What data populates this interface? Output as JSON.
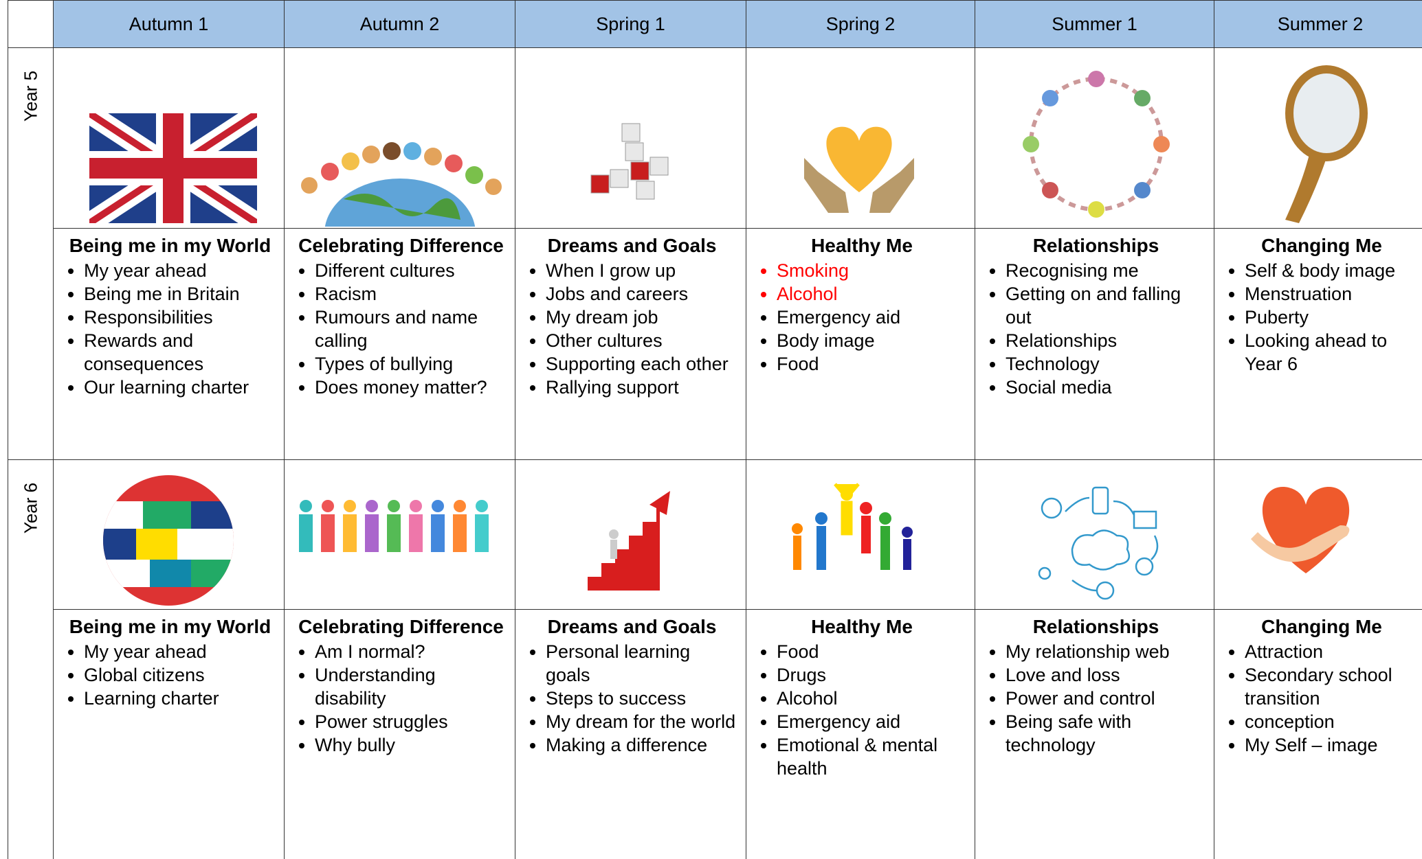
{
  "header": {
    "columns": [
      "Autumn 1",
      "Autumn 2",
      "Spring 1",
      "Spring 2",
      "Summer 1",
      "Summer 2"
    ]
  },
  "rows": [
    {
      "label": "Year 5",
      "cells": [
        {
          "title": "Being me in my World",
          "items": [
            "My year ahead",
            "Being me in Britain",
            "Responsibilities",
            "Rewards and consequences",
            "Our learning charter"
          ]
        },
        {
          "title": "Celebrating Difference",
          "items": [
            "Different cultures",
            "Racism",
            "Rumours and name calling",
            "Types of bullying",
            "Does money matter?"
          ]
        },
        {
          "title": "Dreams and Goals",
          "items": [
            "When I grow up",
            "Jobs and careers",
            "My dream job",
            "Other cultures",
            "Supporting each other",
            "Rallying support"
          ]
        },
        {
          "title": "Healthy Me",
          "items": [
            {
              "text": "Smoking",
              "color": "#ff0000"
            },
            {
              "text": "Alcohol",
              "color": "#ff0000"
            },
            "Emergency aid",
            "Body image",
            "Food"
          ]
        },
        {
          "title": "Relationships",
          "items": [
            "Recognising me",
            "Getting on and falling out",
            "Relationships",
            "Technology",
            "Social media"
          ]
        },
        {
          "title": "Changing Me",
          "items": [
            "Self & body image",
            "Menstruation",
            "Puberty",
            "Looking ahead to Year 6"
          ]
        }
      ]
    },
    {
      "label": "Year 6",
      "cells": [
        {
          "title": "Being me in my World",
          "items": [
            "My year ahead",
            "Global citizens",
            "Learning charter"
          ]
        },
        {
          "title": "Celebrating Difference",
          "items": [
            "Am I normal?",
            "Understanding disability",
            "Power struggles",
            "Why bully"
          ]
        },
        {
          "title": "Dreams and Goals",
          "items": [
            "Personal learning goals",
            "Steps to success",
            "My dream for the world",
            "Making a difference"
          ]
        },
        {
          "title": "Healthy Me",
          "items": [
            "Food",
            "Drugs",
            "Alcohol",
            "Emergency aid",
            "Emotional & mental health"
          ]
        },
        {
          "title": "Relationships",
          "items": [
            "My relationship web",
            "Love and loss",
            "Power and control",
            "Being safe with technology"
          ]
        },
        {
          "title": "Changing Me",
          "items": [
            "Attraction",
            "Secondary school transition",
            "conception",
            "My Self – image"
          ]
        }
      ]
    }
  ]
}
